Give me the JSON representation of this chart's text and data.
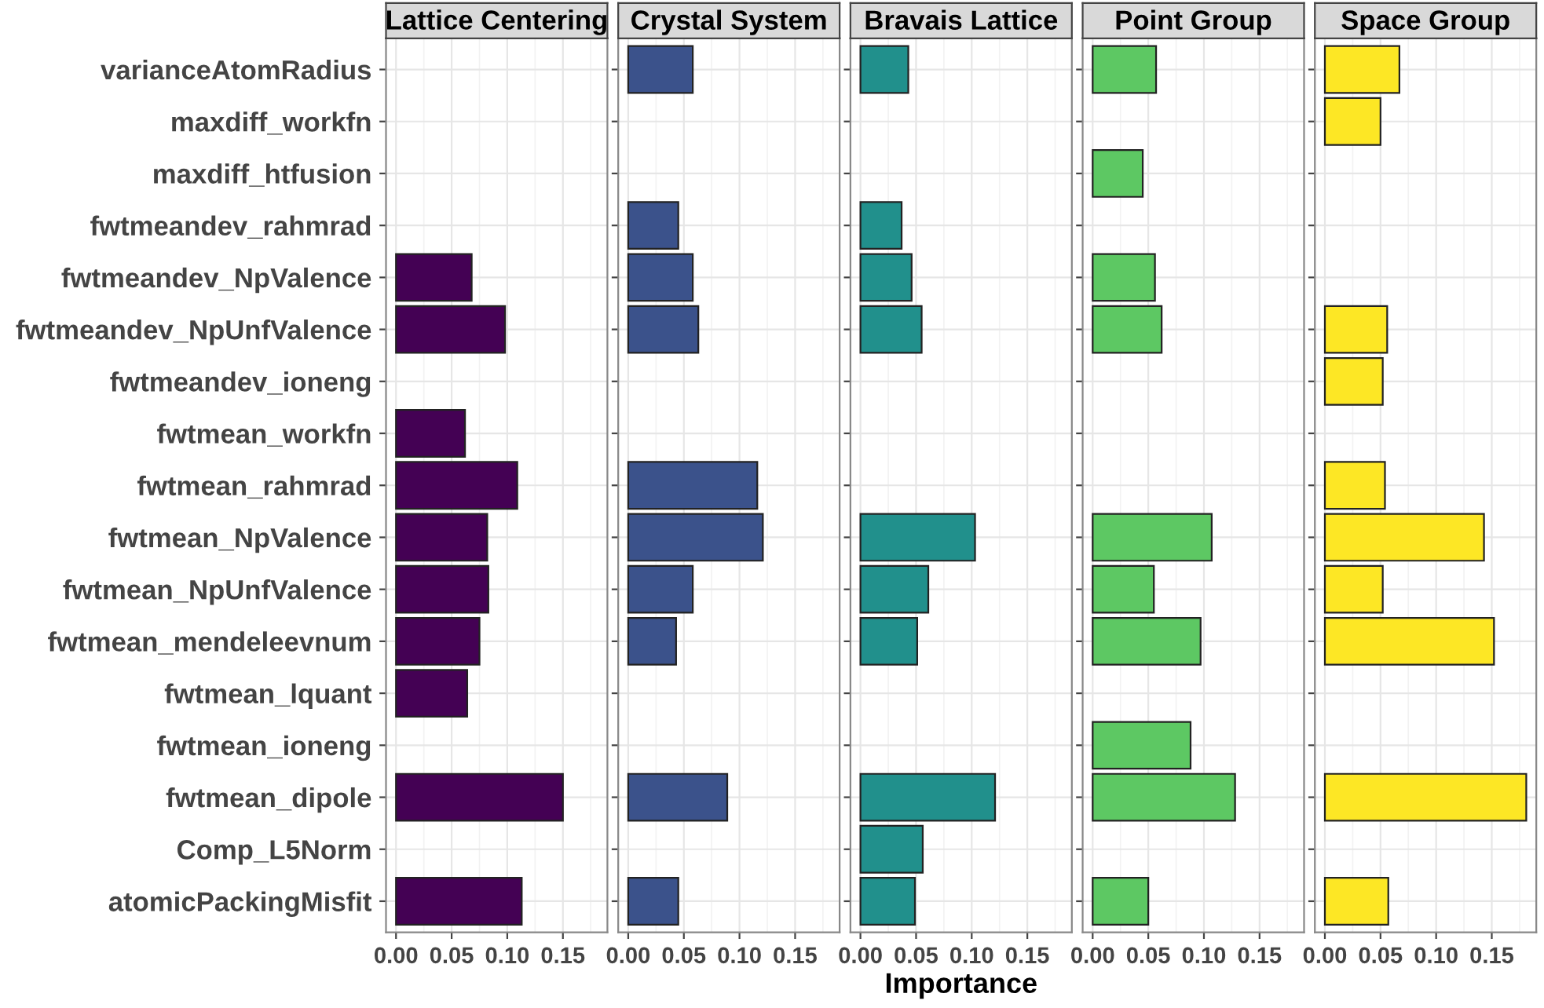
{
  "chart_data": [
    {
      "type": "bar",
      "orientation": "horizontal",
      "title": "Lattice Centering",
      "categories": [
        "varianceAtomRadius",
        "maxdiff_workfn",
        "maxdiff_htfusion",
        "fwtmeandev_rahmrad",
        "fwtmeandev_NpValence",
        "fwtmeandev_NpUnfValence",
        "fwtmeandev_ioneng",
        "fwtmean_workfn",
        "fwtmean_rahmrad",
        "fwtmean_NpValence",
        "fwtmean_NpUnfValence",
        "fwtmean_mendeleevnum",
        "fwtmean_lquant",
        "fwtmean_ioneng",
        "fwtmean_dipole",
        "Comp_L5Norm",
        "atomicPackingMisfit"
      ],
      "values": [
        null,
        null,
        null,
        null,
        0.068,
        0.098,
        null,
        0.062,
        0.109,
        0.082,
        0.083,
        0.075,
        0.064,
        null,
        0.15,
        null,
        0.113
      ],
      "color": "#440154",
      "xlim": [
        -0.009,
        0.19
      ],
      "xticks": [
        {
          "value": 0,
          "label": "0.00"
        },
        {
          "value": 0.05,
          "label": "0.05"
        },
        {
          "value": 0.1,
          "label": "0.10"
        },
        {
          "value": 0.15,
          "label": "0.15"
        }
      ],
      "grid": true
    },
    {
      "type": "bar",
      "orientation": "horizontal",
      "title": "Crystal System",
      "values": [
        0.058,
        null,
        null,
        0.045,
        0.058,
        0.063,
        null,
        null,
        0.116,
        0.121,
        0.058,
        0.043,
        null,
        null,
        0.089,
        null,
        0.045
      ],
      "color": "#3b528b",
      "xlim": [
        -0.009,
        0.19
      ],
      "xticks": [
        {
          "value": 0,
          "label": "0.00"
        },
        {
          "value": 0.05,
          "label": "0.05"
        },
        {
          "value": 0.1,
          "label": "0.10"
        },
        {
          "value": 0.15,
          "label": "0.15"
        }
      ],
      "grid": true,
      "tick_labels": "x"
    },
    {
      "type": "bar",
      "orientation": "horizontal",
      "title": "Bravais Lattice",
      "xlabel": "Importance",
      "values": [
        0.043,
        null,
        null,
        0.037,
        0.046,
        0.055,
        null,
        null,
        null,
        0.103,
        0.061,
        0.051,
        null,
        null,
        0.121,
        0.056,
        0.049
      ],
      "color": "#21908c",
      "xlim": [
        -0.009,
        0.19
      ],
      "xticks": [
        {
          "value": 0,
          "label": "0.00"
        },
        {
          "value": 0.05,
          "label": "0.05"
        },
        {
          "value": 0.1,
          "label": "0.10"
        },
        {
          "value": 0.15,
          "label": "0.15"
        }
      ],
      "grid": true,
      "tick_labels": "x"
    },
    {
      "type": "bar",
      "orientation": "horizontal",
      "title": "Point Group",
      "values": [
        0.057,
        null,
        0.045,
        null,
        0.056,
        0.062,
        null,
        null,
        null,
        0.107,
        0.055,
        0.097,
        null,
        0.088,
        0.128,
        null,
        0.05
      ],
      "color": "#5dc863",
      "xlim": [
        -0.009,
        0.19
      ],
      "xticks": [
        {
          "value": 0,
          "label": "0.00"
        },
        {
          "value": 0.05,
          "label": "0.05"
        },
        {
          "value": 0.1,
          "label": "0.10"
        },
        {
          "value": 0.15,
          "label": "0.15"
        }
      ],
      "grid": true,
      "tick_labels": "x"
    },
    {
      "type": "bar",
      "orientation": "horizontal",
      "title": "Space Group",
      "values": [
        0.067,
        0.05,
        null,
        null,
        null,
        0.056,
        0.052,
        null,
        0.054,
        0.143,
        0.052,
        0.152,
        null,
        null,
        0.181,
        null,
        0.057
      ],
      "color": "#fde725",
      "xlim": [
        -0.009,
        0.19
      ],
      "xticks": [
        {
          "value": 0,
          "label": "0.00"
        },
        {
          "value": 0.05,
          "label": "0.05"
        },
        {
          "value": 0.1,
          "label": "0.10"
        },
        {
          "value": 0.15,
          "label": "0.15"
        }
      ],
      "grid": true,
      "tick_labels": "x"
    }
  ]
}
